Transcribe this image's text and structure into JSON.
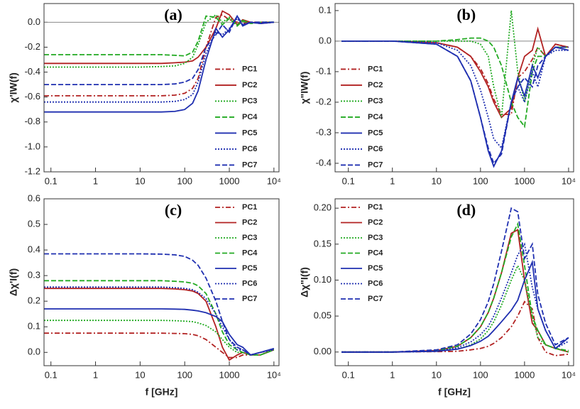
{
  "chart_data": [
    {
      "type": "line",
      "annotation": "(a)",
      "y_label": "χ'IW(f)",
      "log_x": true,
      "zero_line": true,
      "legend": "center right",
      "xlim": [
        0.07,
        13000
      ],
      "ylim": [
        -1.2,
        0.15
      ],
      "xticks": [
        0.1,
        1,
        10,
        100,
        1000,
        {
          "value": 10000,
          "label": "10⁴"
        }
      ],
      "yticks": [
        {
          "value": 0,
          "label": "0.0"
        },
        -0.2,
        -0.4,
        -0.6,
        -0.8,
        {
          "value": -1,
          "label": "-1.0"
        },
        -1.2
      ],
      "x": [
        0.07,
        0.1,
        1,
        10,
        30,
        60,
        100,
        150,
        200,
        300,
        500,
        700,
        1000,
        1500,
        2000,
        3000,
        5000,
        10000
      ],
      "series": [
        {
          "name": "PC1",
          "color": "#b22222",
          "dash": "dashdot",
          "values": [
            -0.59,
            -0.59,
            -0.59,
            -0.59,
            -0.59,
            -0.585,
            -0.57,
            -0.53,
            -0.45,
            -0.2,
            0.04,
            0.06,
            0.02,
            0.0,
            -0.01,
            0.0,
            0.0,
            0.0
          ]
        },
        {
          "name": "PC2",
          "color": "#b22222",
          "dash": "solid",
          "values": [
            -0.33,
            -0.33,
            -0.33,
            -0.33,
            -0.33,
            -0.325,
            -0.32,
            -0.31,
            -0.28,
            -0.2,
            -0.05,
            0.09,
            0.06,
            -0.02,
            0.02,
            0.0,
            -0.01,
            0.0
          ]
        },
        {
          "name": "PC3",
          "color": "#22aa22",
          "dash": "dotted",
          "values": [
            -0.36,
            -0.36,
            -0.36,
            -0.36,
            -0.355,
            -0.35,
            -0.33,
            -0.28,
            -0.18,
            0.0,
            0.06,
            0.0,
            0.04,
            -0.02,
            0.02,
            -0.01,
            0.0,
            0.0
          ]
        },
        {
          "name": "PC4",
          "color": "#22aa22",
          "dash": "dashed",
          "values": [
            -0.26,
            -0.26,
            -0.26,
            -0.26,
            -0.26,
            -0.265,
            -0.27,
            -0.24,
            -0.15,
            0.05,
            0.04,
            -0.02,
            0.03,
            -0.03,
            0.01,
            -0.01,
            0.0,
            0.0
          ]
        },
        {
          "name": "PC5",
          "color": "#1f2fb0",
          "dash": "solid",
          "values": [
            -0.72,
            -0.72,
            -0.72,
            -0.72,
            -0.72,
            -0.715,
            -0.7,
            -0.65,
            -0.55,
            -0.3,
            -0.05,
            -0.12,
            -0.06,
            0.05,
            -0.03,
            0.0,
            -0.01,
            0.0
          ]
        },
        {
          "name": "PC6",
          "color": "#1f2fb0",
          "dash": "dotted",
          "values": [
            -0.64,
            -0.64,
            -0.64,
            -0.64,
            -0.64,
            -0.635,
            -0.62,
            -0.58,
            -0.48,
            -0.25,
            -0.08,
            -0.1,
            -0.05,
            0.03,
            -0.02,
            0.0,
            -0.01,
            0.0
          ]
        },
        {
          "name": "PC7",
          "color": "#1f2fb0",
          "dash": "dashed",
          "values": [
            -0.5,
            -0.5,
            -0.5,
            -0.5,
            -0.5,
            -0.495,
            -0.48,
            -0.45,
            -0.38,
            -0.2,
            -0.1,
            -0.02,
            -0.08,
            0.05,
            -0.02,
            0.0,
            0.0,
            0.0
          ]
        }
      ]
    },
    {
      "type": "line",
      "annotation": "(b)",
      "y_label": "χ\"IW(f)",
      "log_x": true,
      "zero_line": true,
      "legend": "center left",
      "xlim": [
        0.05,
        13000
      ],
      "ylim": [
        -0.428,
        0.123
      ],
      "xticks": [
        0.1,
        1,
        10,
        100,
        1000,
        {
          "value": 10000,
          "label": "10⁴"
        }
      ],
      "yticks": [
        0.1,
        {
          "value": 0,
          "label": "0.0"
        },
        -0.1,
        -0.2,
        -0.3,
        -0.4
      ],
      "x": [
        0.07,
        0.1,
        1,
        10,
        30,
        60,
        100,
        150,
        200,
        300,
        500,
        700,
        1000,
        1500,
        2000,
        3000,
        5000,
        10000
      ],
      "series": [
        {
          "name": "PC1",
          "color": "#b22222",
          "dash": "dashdot",
          "values": [
            0,
            0,
            0,
            -0.005,
            -0.02,
            -0.05,
            -0.09,
            -0.14,
            -0.19,
            -0.24,
            -0.24,
            -0.12,
            -0.1,
            -0.06,
            -0.02,
            -0.05,
            -0.01,
            -0.02
          ]
        },
        {
          "name": "PC2",
          "color": "#b22222",
          "dash": "solid",
          "values": [
            0,
            0,
            0,
            -0.005,
            -0.02,
            -0.05,
            -0.1,
            -0.15,
            -0.2,
            -0.25,
            -0.22,
            -0.12,
            -0.05,
            -0.03,
            0.04,
            -0.05,
            -0.01,
            -0.02
          ]
        },
        {
          "name": "PC3",
          "color": "#22aa22",
          "dash": "dotted",
          "values": [
            0,
            0,
            0,
            0,
            0,
            0,
            -0.01,
            -0.05,
            -0.15,
            -0.25,
            0.1,
            -0.1,
            -0.2,
            -0.08,
            -0.02,
            -0.05,
            -0.02,
            -0.02
          ]
        },
        {
          "name": "PC4",
          "color": "#22aa22",
          "dash": "dashed",
          "values": [
            0,
            0,
            0,
            0,
            0.005,
            0.01,
            0.01,
            0,
            -0.02,
            -0.08,
            -0.2,
            -0.25,
            -0.28,
            -0.1,
            -0.05,
            -0.05,
            -0.02,
            -0.02
          ]
        },
        {
          "name": "PC5",
          "color": "#1f2fb0",
          "dash": "solid",
          "values": [
            0,
            0,
            0,
            -0.01,
            -0.05,
            -0.13,
            -0.25,
            -0.36,
            -0.41,
            -0.36,
            -0.2,
            -0.12,
            -0.18,
            -0.08,
            -0.12,
            -0.05,
            -0.02,
            -0.03
          ]
        },
        {
          "name": "PC6",
          "color": "#1f2fb0",
          "dash": "dotted",
          "values": [
            0,
            0,
            0,
            -0.005,
            -0.03,
            -0.08,
            -0.16,
            -0.25,
            -0.32,
            -0.35,
            -0.2,
            -0.15,
            -0.2,
            -0.1,
            -0.15,
            -0.05,
            -0.03,
            -0.03
          ]
        },
        {
          "name": "PC7",
          "color": "#1f2fb0",
          "dash": "dashed",
          "values": [
            0,
            0,
            0,
            -0.01,
            -0.05,
            -0.13,
            -0.25,
            -0.35,
            -0.4,
            -0.37,
            -0.2,
            -0.15,
            -0.12,
            -0.15,
            -0.08,
            -0.05,
            -0.02,
            -0.02
          ]
        }
      ]
    },
    {
      "type": "line",
      "annotation": "(c)",
      "y_label": "Δχ'I(f)",
      "x_label": "f [GHz]",
      "log_x": true,
      "zero_line": false,
      "legend": "upper right",
      "xlim": [
        0.07,
        13000
      ],
      "ylim": [
        -0.052,
        0.6
      ],
      "xticks": [
        0.1,
        1,
        10,
        100,
        1000,
        {
          "value": 10000,
          "label": "10⁴"
        }
      ],
      "yticks": [
        {
          "value": 0,
          "label": "0.0"
        },
        0.1,
        0.2,
        0.3,
        0.4,
        0.5,
        0.6
      ],
      "x": [
        0.07,
        0.1,
        1,
        10,
        30,
        60,
        100,
        150,
        200,
        300,
        500,
        700,
        1000,
        1500,
        2000,
        3000,
        5000,
        10000
      ],
      "series": [
        {
          "name": "PC1",
          "color": "#b22222",
          "dash": "dashdot",
          "values": [
            0.075,
            0.075,
            0.075,
            0.075,
            0.075,
            0.074,
            0.073,
            0.07,
            0.065,
            0.05,
            0.02,
            0.0,
            -0.02,
            -0.02,
            -0.01,
            -0.01,
            0.0,
            0.01
          ]
        },
        {
          "name": "PC2",
          "color": "#b22222",
          "dash": "solid",
          "values": [
            0.25,
            0.25,
            0.25,
            0.25,
            0.25,
            0.248,
            0.245,
            0.24,
            0.23,
            0.2,
            0.1,
            0.02,
            -0.03,
            -0.01,
            0.0,
            -0.01,
            -0.01,
            0.01
          ]
        },
        {
          "name": "PC3",
          "color": "#22aa22",
          "dash": "dotted",
          "values": [
            0.125,
            0.125,
            0.125,
            0.125,
            0.125,
            0.124,
            0.122,
            0.12,
            0.115,
            0.105,
            0.08,
            0.05,
            0.02,
            0.0,
            0.0,
            -0.01,
            -0.01,
            0.01
          ]
        },
        {
          "name": "PC4",
          "color": "#22aa22",
          "dash": "dashed",
          "values": [
            0.28,
            0.28,
            0.28,
            0.28,
            0.28,
            0.278,
            0.275,
            0.27,
            0.26,
            0.23,
            0.15,
            0.08,
            0.03,
            0.01,
            0.0,
            -0.01,
            -0.01,
            0.01
          ]
        },
        {
          "name": "PC5",
          "color": "#1f2fb0",
          "dash": "solid",
          "values": [
            0.17,
            0.17,
            0.17,
            0.17,
            0.17,
            0.169,
            0.168,
            0.165,
            0.162,
            0.155,
            0.14,
            0.12,
            0.07,
            0.03,
            0.02,
            -0.01,
            0.0,
            0.015
          ]
        },
        {
          "name": "PC6",
          "color": "#1f2fb0",
          "dash": "dotted",
          "values": [
            0.255,
            0.255,
            0.255,
            0.255,
            0.255,
            0.253,
            0.25,
            0.245,
            0.235,
            0.21,
            0.15,
            0.1,
            0.05,
            0.01,
            0.01,
            -0.01,
            0.0,
            0.01
          ]
        },
        {
          "name": "PC7",
          "color": "#1f2fb0",
          "dash": "dashed",
          "values": [
            0.385,
            0.385,
            0.385,
            0.385,
            0.384,
            0.381,
            0.375,
            0.36,
            0.34,
            0.29,
            0.2,
            0.12,
            0.05,
            0.02,
            0.01,
            -0.01,
            0.0,
            0.015
          ]
        }
      ]
    },
    {
      "type": "line",
      "annotation": "(d)",
      "y_label": "Δχ\"I(f)",
      "x_label": "f [GHz]",
      "log_x": true,
      "zero_line": false,
      "legend": "upper left",
      "xlim": [
        0.05,
        13000
      ],
      "ylim": [
        -0.019,
        0.213
      ],
      "xticks": [
        0.1,
        1,
        10,
        100,
        1000,
        {
          "value": 10000,
          "label": "10⁴"
        }
      ],
      "yticks": [
        {
          "value": 0,
          "label": "0.00"
        },
        0.05,
        {
          "value": 0.1,
          "label": "0.10"
        },
        0.15,
        {
          "value": 0.2,
          "label": "0.20"
        }
      ],
      "x": [
        0.07,
        0.1,
        1,
        10,
        30,
        60,
        100,
        150,
        200,
        300,
        500,
        700,
        1000,
        1500,
        2000,
        3000,
        5000,
        10000
      ],
      "series": [
        {
          "name": "PC1",
          "color": "#b22222",
          "dash": "dashdot",
          "values": [
            0,
            0,
            0,
            0.0005,
            0.001,
            0.003,
            0.005,
            0.008,
            0.012,
            0.02,
            0.035,
            0.05,
            0.07,
            0.06,
            0.02,
            0.0,
            -0.005,
            -0.003
          ]
        },
        {
          "name": "PC2",
          "color": "#b22222",
          "dash": "solid",
          "values": [
            0,
            0,
            0,
            0.002,
            0.008,
            0.02,
            0.035,
            0.055,
            0.075,
            0.11,
            0.165,
            0.17,
            0.1,
            0.04,
            0.03,
            0.01,
            0.005,
            0.0
          ]
        },
        {
          "name": "PC3",
          "color": "#22aa22",
          "dash": "dotted",
          "values": [
            0,
            0,
            0,
            0.001,
            0.004,
            0.01,
            0.018,
            0.03,
            0.042,
            0.065,
            0.1,
            0.12,
            0.1,
            0.05,
            0.02,
            0.01,
            0.005,
            0.0
          ]
        },
        {
          "name": "PC4",
          "color": "#22aa22",
          "dash": "dashed",
          "values": [
            0,
            0,
            0,
            0.002,
            0.008,
            0.02,
            0.035,
            0.055,
            0.075,
            0.11,
            0.16,
            0.178,
            0.12,
            0.05,
            0.03,
            0.01,
            0.005,
            0.002
          ]
        },
        {
          "name": "PC5",
          "color": "#1f2fb0",
          "dash": "solid",
          "values": [
            0,
            0,
            0,
            0.001,
            0.004,
            0.009,
            0.015,
            0.022,
            0.03,
            0.042,
            0.058,
            0.072,
            0.1,
            0.125,
            0.06,
            0.03,
            0.005,
            0.02
          ]
        },
        {
          "name": "PC6",
          "color": "#1f2fb0",
          "dash": "dotted",
          "values": [
            0,
            0,
            0,
            0.001,
            0.006,
            0.014,
            0.024,
            0.036,
            0.05,
            0.075,
            0.11,
            0.135,
            0.15,
            0.09,
            0.06,
            0.03,
            0.005,
            0.015
          ]
        },
        {
          "name": "PC7",
          "color": "#1f2fb0",
          "dash": "dashed",
          "values": [
            0,
            0,
            0,
            0.003,
            0.01,
            0.025,
            0.045,
            0.07,
            0.095,
            0.14,
            0.2,
            0.195,
            0.13,
            0.15,
            0.08,
            0.04,
            0.01,
            0.02
          ]
        }
      ]
    }
  ]
}
